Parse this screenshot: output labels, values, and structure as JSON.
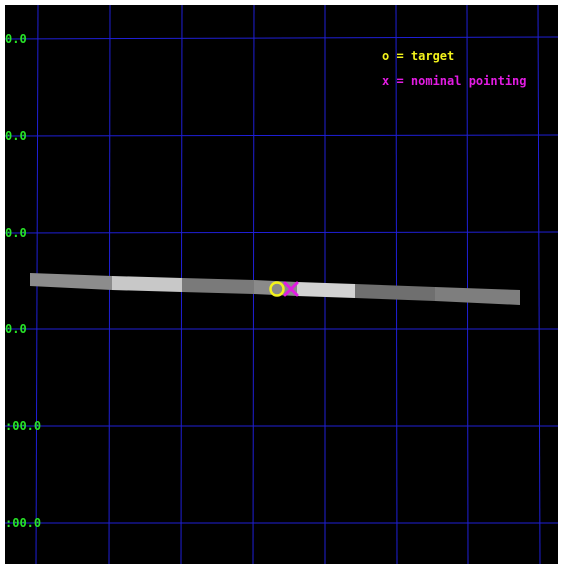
{
  "legend": {
    "target": "o = target",
    "nominal": "x = nominal pointing"
  },
  "y_axis_labels": [
    "0.0",
    "0.0",
    "0.0",
    "0.0",
    ":00.0",
    ":00.0"
  ],
  "colors": {
    "background": "#000000",
    "grid": "#1f1fd6",
    "label": "#27e327",
    "target_marker": "#f2f21c",
    "nominal_marker": "#e21ce2",
    "strip": "#9a9a9a"
  },
  "markers": {
    "target": "circle",
    "nominal_pointing": "cross"
  }
}
